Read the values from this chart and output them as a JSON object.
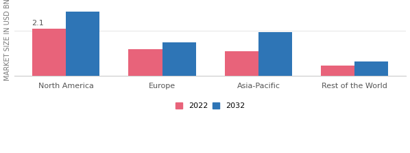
{
  "categories": [
    "North America",
    "Europe",
    "Asia-Pacific",
    "Rest of the World"
  ],
  "values_2022": [
    2.1,
    1.2,
    1.1,
    0.45
  ],
  "values_2032": [
    2.85,
    1.5,
    1.95,
    0.65
  ],
  "color_2022": "#e8637a",
  "color_2032": "#2e75b6",
  "ylabel": "MARKET SIZE IN USD BN",
  "annotation_text": "2.1",
  "legend_labels": [
    "2022",
    "2032"
  ],
  "bar_width": 0.35,
  "ylim": [
    0,
    3.2
  ],
  "background_color": "#ffffff",
  "grid_color": "#e8e8e8",
  "ylabel_fontsize": 7,
  "tick_fontsize": 8,
  "legend_fontsize": 8
}
